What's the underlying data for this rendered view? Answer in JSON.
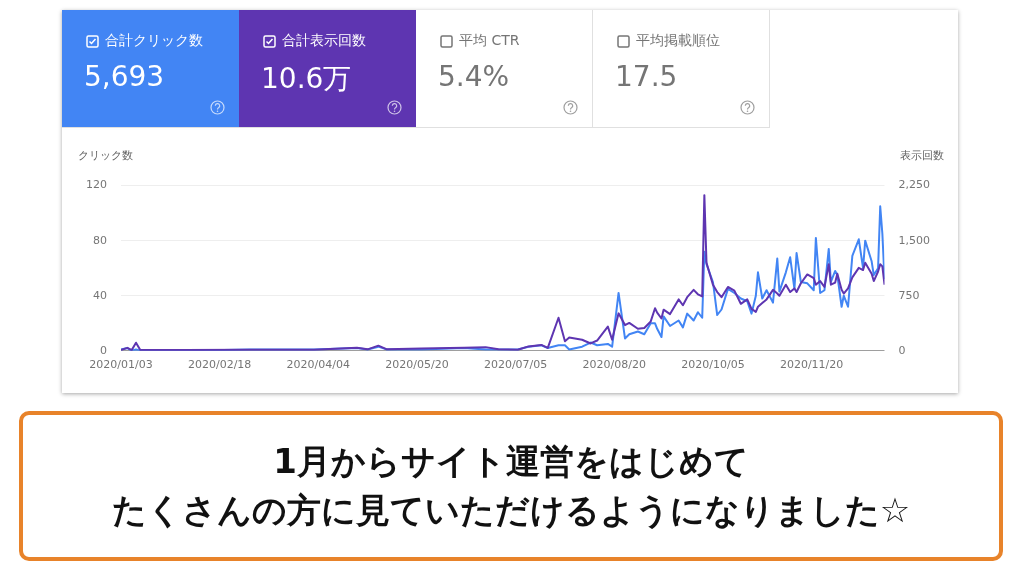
{
  "chart_data": [
    {
      "type": "other",
      "colors": [
        "#4285f4",
        "#5e35b1",
        null,
        null
      ],
      "annotations": [
        "合計クリック数",
        "5,693",
        "合計表示回数",
        "10.6万",
        "平均 CTR",
        "5.4%",
        "平均掲載順位",
        "17.5"
      ]
    },
    {
      "type": "line",
      "ylabel": "クリック数",
      "y2label": "表示回数",
      "grid": "y",
      "legend": false,
      "marker": "none",
      "annotations": [
        "1月からサイト運営をはじめて",
        "たくさんの方に見ていただけるようになりました☆"
      ],
      "xlim": [
        "2020-01-03",
        "2020-12-24"
      ],
      "xticks": [
        {
          "value": "2020-01-03",
          "label": "2020/01/03"
        },
        {
          "value": "2020-02-18",
          "label": "2020/02/18"
        },
        {
          "value": "2020-04-04",
          "label": "2020/04/04"
        },
        {
          "value": "2020-05-20",
          "label": "2020/05/20"
        },
        {
          "value": "2020-07-05",
          "label": "2020/07/05"
        },
        {
          "value": "2020-08-20",
          "label": "2020/08/20"
        },
        {
          "value": "2020-10-05",
          "label": "2020/10/05"
        },
        {
          "value": "2020-11-20",
          "label": "2020/11/20"
        }
      ],
      "ylim": [
        0,
        120
      ],
      "yticks": [
        0,
        40,
        80,
        120
      ],
      "y2lim": [
        0,
        2250
      ],
      "y2ticks": [
        0,
        {
          "value": 750,
          "label": "750"
        },
        {
          "value": 1500,
          "label": "1,500"
        },
        {
          "value": 2250,
          "label": "2,250"
        }
      ],
      "x": [
        "2020-01-03",
        "2020-01-06",
        "2020-01-08",
        "2020-01-10",
        "2020-01-12",
        "2020-02-02",
        "2020-03-03",
        "2020-04-02",
        "2020-04-22",
        "2020-04-27",
        "2020-05-02",
        "2020-05-06",
        "2020-05-22",
        "2020-06-11",
        "2020-06-21",
        "2020-06-27",
        "2020-07-06",
        "2020-07-11",
        "2020-07-17",
        "2020-07-20",
        "2020-07-25",
        "2020-07-28",
        "2020-07-30",
        "2020-08-05",
        "2020-08-09",
        "2020-08-12",
        "2020-08-17",
        "2020-08-19",
        "2020-08-22",
        "2020-08-25",
        "2020-08-27",
        "2020-08-31",
        "2020-09-03",
        "2020-09-06",
        "2020-09-08",
        "2020-09-09",
        "2020-09-11",
        "2020-09-12",
        "2020-09-15",
        "2020-09-19",
        "2020-09-21",
        "2020-09-23",
        "2020-09-26",
        "2020-09-28",
        "2020-09-30",
        "2020-10-01",
        "2020-10-02",
        "2020-10-05",
        "2020-10-07",
        "2020-10-09",
        "2020-10-12",
        "2020-10-15",
        "2020-10-18",
        "2020-10-21",
        "2020-10-23",
        "2020-10-25",
        "2020-10-26",
        "2020-10-28",
        "2020-10-30",
        "2020-11-02",
        "2020-11-04",
        "2020-11-05",
        "2020-11-08",
        "2020-11-10",
        "2020-11-12",
        "2020-11-13",
        "2020-11-15",
        "2020-11-18",
        "2020-11-21",
        "2020-11-22",
        "2020-11-24",
        "2020-11-26",
        "2020-11-28",
        "2020-11-29",
        "2020-12-01",
        "2020-12-02",
        "2020-12-04",
        "2020-12-05",
        "2020-12-07",
        "2020-12-09",
        "2020-12-12",
        "2020-12-14",
        "2020-12-15",
        "2020-12-18",
        "2020-12-19",
        "2020-12-21",
        "2020-12-22",
        "2020-12-23",
        "2020-12-24"
      ],
      "series": [
        {
          "color": "#5e35b1",
          "axis": "y2",
          "values": [
            10,
            40,
            10,
            110,
            10,
            10,
            15,
            15,
            40,
            20,
            70,
            20,
            30,
            40,
            50,
            20,
            15,
            60,
            80,
            40,
            450,
            130,
            180,
            150,
            100,
            140,
            330,
            150,
            510,
            350,
            380,
            300,
            310,
            400,
            580,
            520,
            440,
            560,
            500,
            700,
            620,
            730,
            830,
            770,
            740,
            2120,
            1200,
            900,
            800,
            730,
            870,
            820,
            640,
            700,
            570,
            530,
            600,
            650,
            700,
            830,
            780,
            750,
            900,
            800,
            850,
            800,
            920,
            1040,
            990,
            900,
            950,
            870,
            1180,
            900,
            930,
            1050,
            830,
            780,
            850,
            1000,
            1130,
            1100,
            1200,
            1050,
            950,
            1080,
            1180,
            1150,
            900
          ]
        },
        {
          "color": "#4285f4",
          "values": [
            1,
            2,
            0,
            1,
            0,
            0,
            1,
            1,
            2,
            1,
            3,
            1,
            1,
            2,
            1,
            1,
            1,
            3,
            4,
            2,
            4,
            4,
            1,
            3,
            6,
            4,
            5,
            3,
            42,
            9,
            12,
            14,
            12,
            20,
            20,
            16,
            10,
            25,
            18,
            22,
            17,
            27,
            22,
            28,
            24,
            72,
            63,
            50,
            26,
            30,
            45,
            42,
            38,
            36,
            27,
            40,
            57,
            38,
            44,
            35,
            67,
            43,
            57,
            68,
            45,
            71,
            50,
            49,
            44,
            82,
            42,
            44,
            74,
            50,
            58,
            55,
            32,
            40,
            32,
            69,
            81,
            60,
            80,
            65,
            55,
            60,
            105,
            85,
            52
          ]
        }
      ]
    }
  ]
}
